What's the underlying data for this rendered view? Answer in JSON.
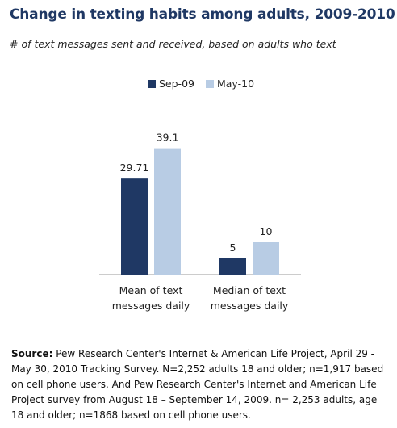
{
  "title": "Change in texting habits among adults, 2009-2010",
  "subtitle": "# of text messages sent and received, based on adults who text",
  "chart_data": {
    "type": "bar",
    "categories": [
      "Mean of text messages daily",
      "Median of text messages daily"
    ],
    "category_lines": [
      [
        "Mean of text",
        "messages daily"
      ],
      [
        "Median of text",
        "messages daily"
      ]
    ],
    "series": [
      {
        "name": "Sep-09",
        "color": "#1f3864",
        "values": [
          29.71,
          5
        ],
        "labels": [
          "29.71",
          "5"
        ]
      },
      {
        "name": "May-10",
        "color": "#b8cce4",
        "values": [
          39.1,
          10
        ],
        "labels": [
          "39.1",
          "10"
        ]
      }
    ],
    "ylim": [
      0,
      45
    ],
    "grid": false,
    "legend_position": "top-center"
  },
  "source": {
    "label": "Source:",
    "text": "Pew Research Center's Internet & American Life Project, April 29 - May 30, 2010 Tracking Survey. N=2,252 adults 18 and older; n=1,917 based on cell phone users. And Pew Research Center's Internet and American Life Project survey from August 18 – September 14, 2009. n= 2,253 adults, age 18 and older; n=1868 based on cell phone users."
  }
}
